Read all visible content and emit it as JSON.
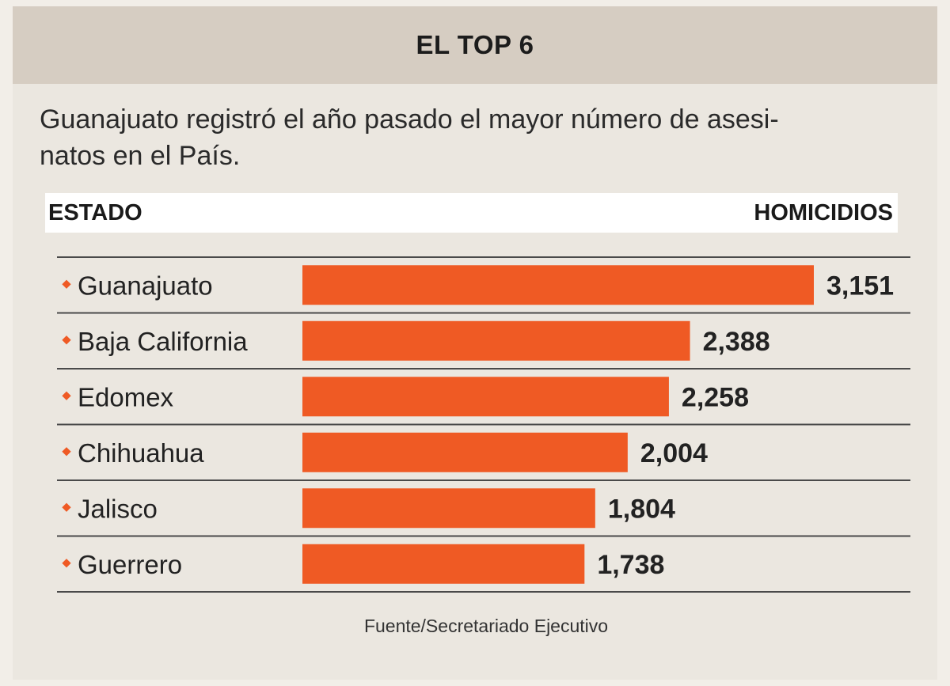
{
  "header": {
    "title": "EL TOP 6"
  },
  "subtitle": "Guanajuato registró el año pasado el mayor número de asesi-natos en el País.",
  "columns": {
    "state": "ESTADO",
    "value": "HOMICIDIOS"
  },
  "source": "Fuente/Secretariado Ejecutivo",
  "colors": {
    "bar": "#ef5a24",
    "bullet": "#ef5a24",
    "rule": "#4a4a4a"
  },
  "chart_data": {
    "type": "bar",
    "orientation": "horizontal",
    "title": "EL TOP 6",
    "xlabel": "HOMICIDIOS",
    "ylabel": "ESTADO",
    "categories": [
      "Guanajuato",
      "Baja California",
      "Edomex",
      "Chihuahua",
      "Jalisco",
      "Guerrero"
    ],
    "values": [
      3151,
      2388,
      2258,
      2004,
      1804,
      1738
    ],
    "value_labels": [
      "3,151",
      "2,388",
      "2,258",
      "2,004",
      "1,804",
      "1,738"
    ],
    "xlim": [
      0,
      3151
    ],
    "grid": false
  }
}
